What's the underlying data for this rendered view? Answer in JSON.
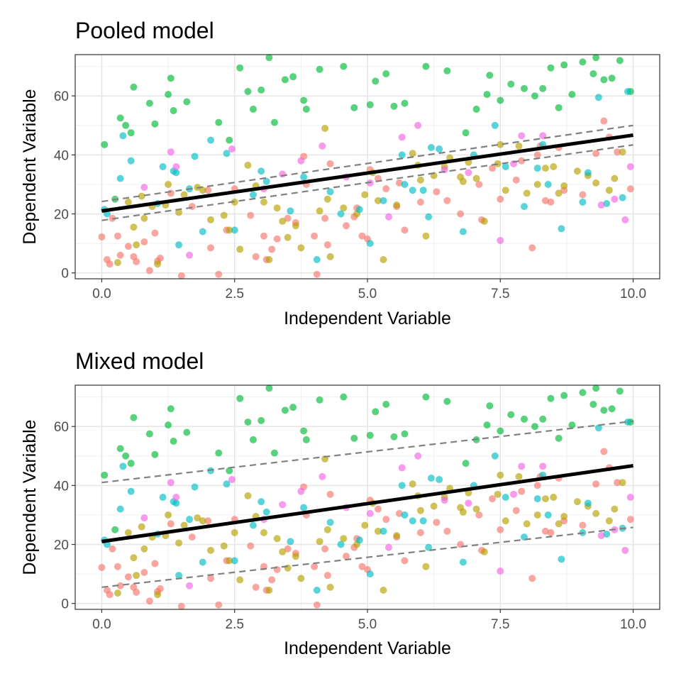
{
  "chart_data": [
    {
      "type": "scatter",
      "title": "Pooled model",
      "xlabel": "Independent Variable",
      "ylabel": "Dependent Variable",
      "xlim": [
        -0.5,
        10.5
      ],
      "ylim": [
        -2,
        74
      ],
      "xticks": [
        "0.0",
        "2.5",
        "5.0",
        "7.5",
        "10.0"
      ],
      "xtick_values": [
        0,
        2.5,
        5,
        7.5,
        10
      ],
      "yticks": [
        "0",
        "20",
        "40",
        "60"
      ],
      "ytick_values": [
        0,
        20,
        40,
        60
      ],
      "grid": true,
      "legend": "none",
      "fit_line": {
        "name": "fit",
        "x": [
          0,
          10
        ],
        "y": [
          21.0,
          46.7
        ],
        "color": "#000000",
        "style": "solid"
      },
      "interval_lower": {
        "x": [
          0,
          10
        ],
        "y": [
          17.8,
          43.4
        ],
        "color": "#808080",
        "style": "dashed"
      },
      "interval_upper": {
        "x": [
          0,
          10
        ],
        "y": [
          24.2,
          50.0
        ],
        "color": "#808080",
        "style": "dashed"
      }
    },
    {
      "type": "scatter",
      "title": "Mixed model",
      "xlabel": "Independent Variable",
      "ylabel": "Dependent Variable",
      "xlim": [
        -0.5,
        10.5
      ],
      "ylim": [
        -2,
        74
      ],
      "xticks": [
        "0.0",
        "2.5",
        "5.0",
        "7.5",
        "10.0"
      ],
      "xtick_values": [
        0,
        2.5,
        5,
        7.5,
        10
      ],
      "yticks": [
        "0",
        "20",
        "40",
        "60"
      ],
      "ytick_values": [
        0,
        20,
        40,
        60
      ],
      "grid": true,
      "legend": "none",
      "fit_line": {
        "name": "fit",
        "x": [
          0,
          10
        ],
        "y": [
          21.0,
          46.7
        ],
        "color": "#000000",
        "style": "solid"
      },
      "interval_lower": {
        "x": [
          0,
          10
        ],
        "y": [
          5.5,
          25.8
        ],
        "color": "#808080",
        "style": "dashed"
      },
      "interval_upper": {
        "x": [
          0,
          10
        ],
        "y": [
          41.0,
          61.8
        ],
        "color": "#808080",
        "style": "dashed"
      }
    }
  ],
  "groups": [
    {
      "color": "#F8766D",
      "points": [
        [
          0.0,
          12.2
        ],
        [
          0.1,
          4.5
        ],
        [
          0.15,
          3.0
        ],
        [
          0.2,
          18.5
        ],
        [
          0.3,
          12.5
        ],
        [
          0.35,
          6.0
        ],
        [
          0.5,
          9.0
        ],
        [
          0.6,
          5.5
        ],
        [
          0.65,
          3.8
        ],
        [
          0.8,
          10.5
        ],
        [
          0.9,
          0.8
        ],
        [
          1.0,
          13.5
        ],
        [
          1.05,
          4.0
        ],
        [
          1.1,
          5.0
        ],
        [
          1.3,
          27.0
        ],
        [
          1.5,
          -1.0
        ],
        [
          1.7,
          22.5
        ],
        [
          2.0,
          28.0
        ],
        [
          2.05,
          8.5
        ],
        [
          2.2,
          -0.5
        ],
        [
          2.35,
          14.5
        ],
        [
          2.5,
          28.5
        ],
        [
          2.8,
          19.5
        ],
        [
          2.9,
          5.5
        ],
        [
          3.05,
          12.5
        ],
        [
          3.1,
          4.5
        ],
        [
          3.2,
          8.0
        ],
        [
          3.3,
          11.5
        ],
        [
          3.5,
          18.5
        ],
        [
          3.65,
          17.0
        ],
        [
          3.8,
          39.5
        ],
        [
          3.85,
          30.0
        ],
        [
          4.0,
          12.5
        ],
        [
          4.05,
          -0.5
        ],
        [
          4.2,
          18.5
        ],
        [
          4.25,
          9.5
        ],
        [
          4.3,
          37.0
        ],
        [
          4.6,
          16.0
        ],
        [
          4.75,
          19.0
        ],
        [
          4.8,
          22.0
        ],
        [
          4.9,
          12.5
        ],
        [
          5.0,
          11.5
        ],
        [
          5.05,
          35.0
        ],
        [
          5.2,
          32.0
        ],
        [
          5.35,
          28.5
        ],
        [
          5.55,
          22.5
        ],
        [
          5.6,
          30.5
        ],
        [
          5.7,
          14.5
        ],
        [
          6.0,
          24.0
        ],
        [
          6.3,
          27.5
        ],
        [
          6.5,
          24.5
        ],
        [
          6.75,
          20.0
        ],
        [
          7.1,
          30.0
        ],
        [
          7.15,
          18.0
        ],
        [
          7.35,
          35.5
        ],
        [
          7.5,
          25.0
        ],
        [
          7.8,
          31.5
        ],
        [
          7.9,
          38.0
        ],
        [
          8.1,
          8.5
        ],
        [
          8.2,
          40.0
        ],
        [
          8.25,
          43.0
        ],
        [
          8.35,
          24.5
        ],
        [
          8.45,
          24.0
        ],
        [
          8.6,
          42.5
        ],
        [
          8.7,
          28.0
        ],
        [
          9.05,
          26.5
        ],
        [
          9.3,
          40.5
        ],
        [
          9.45,
          51.5
        ],
        [
          9.55,
          46.0
        ],
        [
          9.7,
          41.0
        ],
        [
          9.95,
          28.5
        ]
      ]
    },
    {
      "color": "#B79F00",
      "points": [
        [
          0.3,
          3.5
        ],
        [
          0.5,
          24.0
        ],
        [
          0.6,
          15.5
        ],
        [
          0.65,
          9.5
        ],
        [
          0.75,
          26.0
        ],
        [
          0.8,
          18.5
        ],
        [
          0.95,
          22.5
        ],
        [
          1.05,
          3.0
        ],
        [
          1.2,
          23.0
        ],
        [
          1.25,
          30.0
        ],
        [
          1.45,
          20.5
        ],
        [
          1.55,
          26.5
        ],
        [
          1.8,
          29.0
        ],
        [
          1.9,
          28.0
        ],
        [
          2.05,
          18.0
        ],
        [
          2.3,
          19.5
        ],
        [
          2.4,
          14.5
        ],
        [
          2.5,
          24.0
        ],
        [
          2.6,
          8.0
        ],
        [
          2.75,
          36.5
        ],
        [
          2.9,
          29.5
        ],
        [
          3.05,
          24.0
        ],
        [
          3.15,
          4.5
        ],
        [
          3.3,
          22.0
        ],
        [
          3.4,
          17.5
        ],
        [
          3.5,
          12.0
        ],
        [
          3.65,
          16.0
        ],
        [
          3.75,
          8.5
        ],
        [
          4.1,
          21.0
        ],
        [
          4.2,
          49.0
        ],
        [
          4.25,
          25.0
        ],
        [
          4.3,
          5.5
        ],
        [
          4.55,
          22.0
        ],
        [
          4.8,
          20.0
        ],
        [
          4.95,
          26.5
        ],
        [
          5.1,
          34.0
        ],
        [
          5.2,
          24.5
        ],
        [
          5.3,
          4.5
        ],
        [
          5.55,
          23.0
        ],
        [
          5.85,
          40.5
        ],
        [
          5.95,
          36.5
        ],
        [
          6.0,
          31.5
        ],
        [
          6.1,
          12.5
        ],
        [
          6.25,
          33.0
        ],
        [
          6.45,
          36.0
        ],
        [
          6.55,
          39.0
        ],
        [
          6.75,
          32.5
        ],
        [
          6.8,
          31.0
        ],
        [
          6.9,
          37.5
        ],
        [
          7.05,
          32.0
        ],
        [
          7.2,
          17.5
        ],
        [
          7.45,
          37.0
        ],
        [
          7.5,
          43.5
        ],
        [
          7.6,
          28.0
        ],
        [
          7.85,
          43.0
        ],
        [
          8.0,
          27.0
        ],
        [
          8.2,
          30.0
        ],
        [
          8.35,
          35.5
        ],
        [
          8.5,
          36.0
        ],
        [
          8.6,
          27.0
        ],
        [
          8.7,
          29.5
        ],
        [
          8.95,
          34.5
        ],
        [
          9.15,
          33.0
        ],
        [
          9.3,
          30.5
        ],
        [
          9.55,
          28.0
        ],
        [
          9.65,
          32.0
        ],
        [
          9.8,
          41.0
        ]
      ]
    },
    {
      "color": "#00BA38",
      "points": [
        [
          0.05,
          43.5
        ],
        [
          0.25,
          25.0
        ],
        [
          0.35,
          52.5
        ],
        [
          0.45,
          50.0
        ],
        [
          0.55,
          47.5
        ],
        [
          0.6,
          63.0
        ],
        [
          0.9,
          57.5
        ],
        [
          1.0,
          50.5
        ],
        [
          1.25,
          60.5
        ],
        [
          1.3,
          66.0
        ],
        [
          1.35,
          55.0
        ],
        [
          1.6,
          58.0
        ],
        [
          2.2,
          51.0
        ],
        [
          2.4,
          45.0
        ],
        [
          2.6,
          69.5
        ],
        [
          2.75,
          61.5
        ],
        [
          2.85,
          55.5
        ],
        [
          3.0,
          62.0
        ],
        [
          3.15,
          73.0
        ],
        [
          3.25,
          51.0
        ],
        [
          3.45,
          65.5
        ],
        [
          3.6,
          66.5
        ],
        [
          3.8,
          58.5
        ],
        [
          3.85,
          55.5
        ],
        [
          4.1,
          69.0
        ],
        [
          4.55,
          70.0
        ],
        [
          4.75,
          56.0
        ],
        [
          5.05,
          57.0
        ],
        [
          5.15,
          65.0
        ],
        [
          5.35,
          67.5
        ],
        [
          5.5,
          56.5
        ],
        [
          5.7,
          57.5
        ],
        [
          6.1,
          70.0
        ],
        [
          6.5,
          68.5
        ],
        [
          6.85,
          47.5
        ],
        [
          7.05,
          55.5
        ],
        [
          7.25,
          60.5
        ],
        [
          7.3,
          67.0
        ],
        [
          7.5,
          58.5
        ],
        [
          7.7,
          64.0
        ],
        [
          7.95,
          62.5
        ],
        [
          8.15,
          60.0
        ],
        [
          8.3,
          62.5
        ],
        [
          8.45,
          69.5
        ],
        [
          8.6,
          56.0
        ],
        [
          8.7,
          70.5
        ],
        [
          8.85,
          60.5
        ],
        [
          9.05,
          71.5
        ],
        [
          9.25,
          67.5
        ],
        [
          9.3,
          73.0
        ],
        [
          9.45,
          65.5
        ],
        [
          9.6,
          66.0
        ],
        [
          9.75,
          72.0
        ],
        [
          9.95,
          61.5
        ]
      ]
    },
    {
      "color": "#00BFC4",
      "points": [
        [
          0.05,
          21.5
        ],
        [
          0.1,
          20.0
        ],
        [
          0.35,
          32.0
        ],
        [
          0.4,
          46.5
        ],
        [
          0.55,
          38.0
        ],
        [
          1.05,
          23.5
        ],
        [
          1.15,
          36.0
        ],
        [
          1.35,
          34.5
        ],
        [
          1.4,
          34.0
        ],
        [
          1.45,
          9.5
        ],
        [
          1.65,
          28.5
        ],
        [
          1.75,
          39.5
        ],
        [
          1.9,
          14.0
        ],
        [
          2.05,
          45.0
        ],
        [
          2.35,
          40.5
        ],
        [
          2.5,
          14.5
        ],
        [
          2.85,
          26.5
        ],
        [
          3.0,
          34.5
        ],
        [
          3.1,
          31.0
        ],
        [
          3.55,
          21.0
        ],
        [
          3.8,
          32.5
        ],
        [
          4.05,
          4.5
        ],
        [
          4.3,
          27.5
        ],
        [
          4.5,
          20.0
        ],
        [
          4.85,
          21.5
        ],
        [
          5.05,
          10.0
        ],
        [
          5.3,
          24.5
        ],
        [
          5.65,
          40.0
        ],
        [
          5.7,
          30.0
        ],
        [
          5.85,
          28.0
        ],
        [
          6.05,
          28.0
        ],
        [
          6.15,
          19.0
        ],
        [
          6.2,
          42.5
        ],
        [
          6.35,
          42.0
        ],
        [
          6.8,
          14.0
        ],
        [
          7.0,
          40.0
        ],
        [
          7.4,
          50.0
        ],
        [
          7.6,
          36.0
        ],
        [
          7.95,
          22.5
        ],
        [
          8.2,
          35.5
        ],
        [
          8.3,
          43.5
        ],
        [
          8.4,
          30.0
        ],
        [
          8.65,
          15.0
        ],
        [
          9.05,
          24.0
        ],
        [
          9.15,
          34.0
        ],
        [
          9.35,
          59.5
        ],
        [
          9.5,
          23.5
        ],
        [
          9.8,
          25.5
        ],
        [
          9.9,
          61.5
        ]
      ]
    },
    {
      "color": "#F564E3",
      "points": [
        [
          0.8,
          29.0
        ],
        [
          1.3,
          41.0
        ],
        [
          1.4,
          36.0
        ],
        [
          1.65,
          6.0
        ],
        [
          2.45,
          42.0
        ],
        [
          3.05,
          28.5
        ],
        [
          3.4,
          33.5
        ],
        [
          3.75,
          38.0
        ],
        [
          4.15,
          43.0
        ],
        [
          4.6,
          32.5
        ],
        [
          5.05,
          30.5
        ],
        [
          5.4,
          19.0
        ],
        [
          5.65,
          46.0
        ],
        [
          5.95,
          50.0
        ],
        [
          6.45,
          35.0
        ],
        [
          6.9,
          34.0
        ],
        [
          7.5,
          11.0
        ],
        [
          7.75,
          37.0
        ],
        [
          7.9,
          46.5
        ],
        [
          8.3,
          46.5
        ],
        [
          9.4,
          23.0
        ],
        [
          9.65,
          25.0
        ],
        [
          9.85,
          18.0
        ],
        [
          9.95,
          36.0
        ]
      ]
    }
  ]
}
